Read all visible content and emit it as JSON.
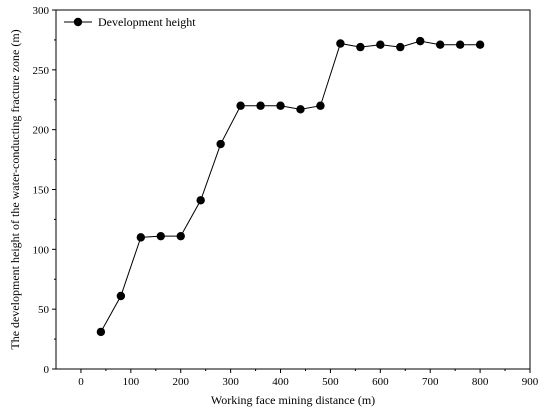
{
  "chart_data": {
    "type": "line",
    "xlabel": "Working face mining distance (m)",
    "ylabel": "The development height of the water-conducting fracture zone (m)",
    "xlim": [
      -50,
      900
    ],
    "ylim": [
      0,
      300
    ],
    "x_ticks": [
      0,
      100,
      200,
      300,
      400,
      500,
      600,
      700,
      800,
      900
    ],
    "y_ticks": [
      0,
      50,
      100,
      150,
      200,
      250,
      300
    ],
    "legend_position": "top-left",
    "grid": false,
    "series": [
      {
        "name": "Development height",
        "color": "#000000",
        "marker": "circle",
        "x": [
          40,
          80,
          120,
          160,
          200,
          240,
          280,
          320,
          360,
          400,
          440,
          480,
          520,
          560,
          600,
          640,
          680,
          720,
          760,
          800
        ],
        "y": [
          31,
          61,
          110,
          111,
          111,
          141,
          188,
          220,
          220,
          220,
          217,
          220,
          272,
          269,
          271,
          269,
          274,
          271,
          271,
          271
        ]
      }
    ]
  }
}
